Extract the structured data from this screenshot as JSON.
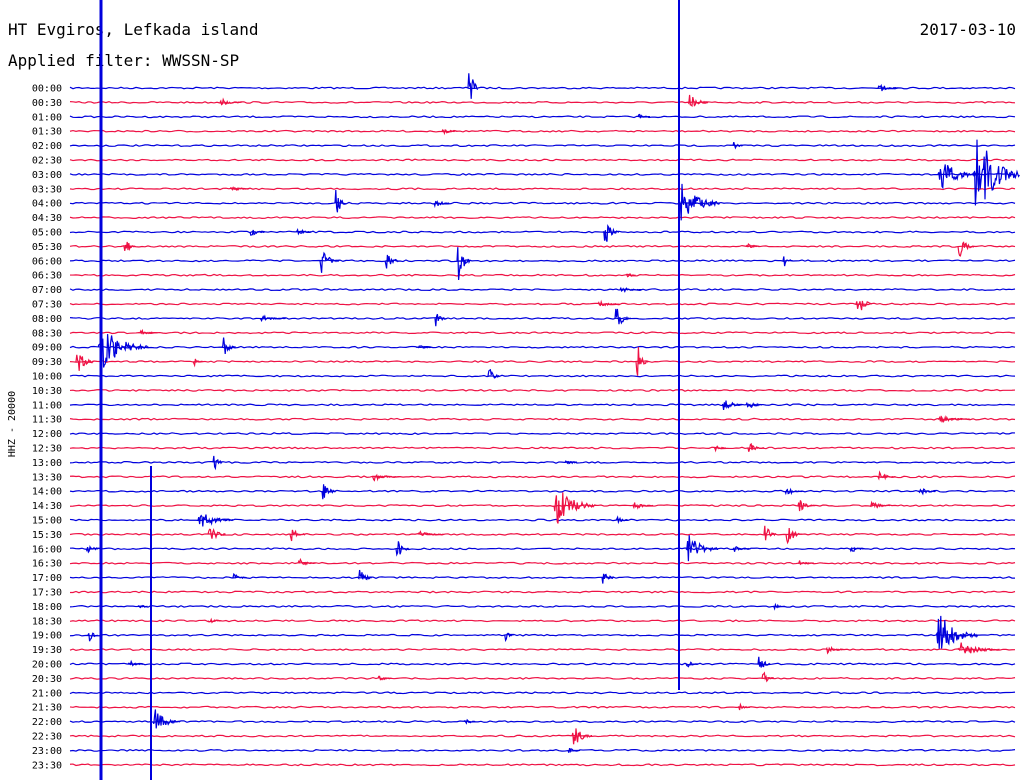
{
  "header": {
    "station": "HT Evgiros, Lefkada island",
    "filter": "Applied filter: WWSSN-SP",
    "date": "2017-03-10"
  },
  "chart_data": {
    "type": "line",
    "ylabel": "HHZ - 20000",
    "rows": [
      "00:00",
      "00:30",
      "01:00",
      "01:30",
      "02:00",
      "02:30",
      "03:00",
      "03:30",
      "04:00",
      "04:30",
      "05:00",
      "05:30",
      "06:00",
      "06:30",
      "07:00",
      "07:30",
      "08:00",
      "08:30",
      "09:00",
      "09:30",
      "10:00",
      "10:30",
      "11:00",
      "11:30",
      "12:00",
      "12:30",
      "13:00",
      "13:30",
      "14:00",
      "14:30",
      "15:00",
      "15:30",
      "16:00",
      "16:30",
      "17:00",
      "17:30",
      "18:00",
      "18:30",
      "19:00",
      "19:30",
      "20:00",
      "20:30",
      "21:00",
      "21:30",
      "22:00",
      "22:30",
      "23:00",
      "23:30"
    ],
    "colors": [
      "#0000dd",
      "#ee1144"
    ],
    "events": [
      {
        "row": 0,
        "x": 470,
        "amp": 40,
        "dur": 8
      },
      {
        "row": 0,
        "x": 880,
        "amp": 6,
        "dur": 18
      },
      {
        "row": 1,
        "x": 222,
        "amp": 5,
        "dur": 20
      },
      {
        "row": 1,
        "x": 690,
        "amp": 14,
        "dur": 18
      },
      {
        "row": 2,
        "x": 640,
        "amp": 4,
        "dur": 10
      },
      {
        "row": 3,
        "x": 444,
        "amp": 4,
        "dur": 14
      },
      {
        "row": 4,
        "x": 735,
        "amp": 6,
        "dur": 8
      },
      {
        "row": 6,
        "x": 940,
        "amp": 20,
        "dur": 40
      },
      {
        "row": 6,
        "x": 975,
        "amp": 60,
        "dur": 45
      },
      {
        "row": 7,
        "x": 232,
        "amp": 4,
        "dur": 18
      },
      {
        "row": 8,
        "x": 337,
        "amp": 20,
        "dur": 10
      },
      {
        "row": 8,
        "x": 436,
        "amp": 6,
        "dur": 14
      },
      {
        "row": 8,
        "x": 680,
        "amp": 30,
        "dur": 40
      },
      {
        "row": 10,
        "x": 252,
        "amp": 6,
        "dur": 14
      },
      {
        "row": 10,
        "x": 298,
        "amp": 5,
        "dur": 14
      },
      {
        "row": 10,
        "x": 605,
        "amp": 22,
        "dur": 14
      },
      {
        "row": 11,
        "x": 126,
        "amp": 12,
        "dur": 10
      },
      {
        "row": 11,
        "x": 748,
        "amp": 5,
        "dur": 12
      },
      {
        "row": 11,
        "x": 960,
        "amp": 18,
        "dur": 14
      },
      {
        "row": 12,
        "x": 322,
        "amp": 16,
        "dur": 18
      },
      {
        "row": 12,
        "x": 387,
        "amp": 16,
        "dur": 12
      },
      {
        "row": 12,
        "x": 459,
        "amp": 30,
        "dur": 12
      },
      {
        "row": 12,
        "x": 785,
        "amp": 10,
        "dur": 8
      },
      {
        "row": 13,
        "x": 628,
        "amp": 5,
        "dur": 8
      },
      {
        "row": 14,
        "x": 622,
        "amp": 5,
        "dur": 20
      },
      {
        "row": 15,
        "x": 858,
        "amp": 22,
        "dur": 14
      },
      {
        "row": 15,
        "x": 600,
        "amp": 4,
        "dur": 20
      },
      {
        "row": 16,
        "x": 437,
        "amp": 12,
        "dur": 10
      },
      {
        "row": 16,
        "x": 617,
        "amp": 18,
        "dur": 14
      },
      {
        "row": 16,
        "x": 262,
        "amp": 4,
        "dur": 24
      },
      {
        "row": 17,
        "x": 142,
        "amp": 4,
        "dur": 16
      },
      {
        "row": 18,
        "x": 100,
        "amp": 30,
        "dur": 50
      },
      {
        "row": 18,
        "x": 224,
        "amp": 14,
        "dur": 12
      },
      {
        "row": 18,
        "x": 418,
        "amp": 5,
        "dur": 14
      },
      {
        "row": 19,
        "x": 78,
        "amp": 18,
        "dur": 16
      },
      {
        "row": 19,
        "x": 638,
        "amp": 28,
        "dur": 10
      },
      {
        "row": 19,
        "x": 195,
        "amp": 6,
        "dur": 8
      },
      {
        "row": 20,
        "x": 490,
        "amp": 12,
        "dur": 10
      },
      {
        "row": 22,
        "x": 724,
        "amp": 10,
        "dur": 18
      },
      {
        "row": 22,
        "x": 748,
        "amp": 8,
        "dur": 14
      },
      {
        "row": 23,
        "x": 940,
        "amp": 5,
        "dur": 30
      },
      {
        "row": 25,
        "x": 750,
        "amp": 8,
        "dur": 14
      },
      {
        "row": 25,
        "x": 716,
        "amp": 5,
        "dur": 10
      },
      {
        "row": 26,
        "x": 215,
        "amp": 14,
        "dur": 8
      },
      {
        "row": 26,
        "x": 567,
        "amp": 6,
        "dur": 10
      },
      {
        "row": 27,
        "x": 374,
        "amp": 5,
        "dur": 26
      },
      {
        "row": 27,
        "x": 880,
        "amp": 6,
        "dur": 16
      },
      {
        "row": 28,
        "x": 324,
        "amp": 20,
        "dur": 12
      },
      {
        "row": 28,
        "x": 787,
        "amp": 6,
        "dur": 16
      },
      {
        "row": 28,
        "x": 920,
        "amp": 6,
        "dur": 16
      },
      {
        "row": 29,
        "x": 556,
        "amp": 26,
        "dur": 40
      },
      {
        "row": 29,
        "x": 800,
        "amp": 8,
        "dur": 16
      },
      {
        "row": 29,
        "x": 872,
        "amp": 6,
        "dur": 18
      },
      {
        "row": 29,
        "x": 635,
        "amp": 5,
        "dur": 18
      },
      {
        "row": 30,
        "x": 200,
        "amp": 12,
        "dur": 34
      },
      {
        "row": 30,
        "x": 618,
        "amp": 6,
        "dur": 10
      },
      {
        "row": 31,
        "x": 210,
        "amp": 14,
        "dur": 16
      },
      {
        "row": 31,
        "x": 292,
        "amp": 10,
        "dur": 14
      },
      {
        "row": 31,
        "x": 766,
        "amp": 18,
        "dur": 10
      },
      {
        "row": 31,
        "x": 788,
        "amp": 16,
        "dur": 14
      },
      {
        "row": 31,
        "x": 420,
        "amp": 4,
        "dur": 24
      },
      {
        "row": 32,
        "x": 88,
        "amp": 6,
        "dur": 14
      },
      {
        "row": 32,
        "x": 398,
        "amp": 14,
        "dur": 12
      },
      {
        "row": 32,
        "x": 688,
        "amp": 20,
        "dur": 30
      },
      {
        "row": 32,
        "x": 735,
        "amp": 5,
        "dur": 16
      },
      {
        "row": 32,
        "x": 852,
        "amp": 6,
        "dur": 12
      },
      {
        "row": 33,
        "x": 300,
        "amp": 6,
        "dur": 16
      },
      {
        "row": 33,
        "x": 800,
        "amp": 5,
        "dur": 14
      },
      {
        "row": 34,
        "x": 235,
        "amp": 6,
        "dur": 12
      },
      {
        "row": 34,
        "x": 360,
        "amp": 14,
        "dur": 12
      },
      {
        "row": 34,
        "x": 604,
        "amp": 12,
        "dur": 10
      },
      {
        "row": 36,
        "x": 140,
        "amp": 5,
        "dur": 8
      },
      {
        "row": 36,
        "x": 775,
        "amp": 4,
        "dur": 10
      },
      {
        "row": 37,
        "x": 210,
        "amp": 4,
        "dur": 12
      },
      {
        "row": 38,
        "x": 90,
        "amp": 10,
        "dur": 8
      },
      {
        "row": 38,
        "x": 506,
        "amp": 10,
        "dur": 8
      },
      {
        "row": 38,
        "x": 938,
        "amp": 30,
        "dur": 40
      },
      {
        "row": 39,
        "x": 828,
        "amp": 6,
        "dur": 16
      },
      {
        "row": 39,
        "x": 960,
        "amp": 10,
        "dur": 40
      },
      {
        "row": 40,
        "x": 130,
        "amp": 5,
        "dur": 14
      },
      {
        "row": 40,
        "x": 688,
        "amp": 6,
        "dur": 10
      },
      {
        "row": 40,
        "x": 760,
        "amp": 14,
        "dur": 10
      },
      {
        "row": 41,
        "x": 764,
        "amp": 12,
        "dur": 10
      },
      {
        "row": 41,
        "x": 380,
        "amp": 6,
        "dur": 12
      },
      {
        "row": 43,
        "x": 740,
        "amp": 5,
        "dur": 10
      },
      {
        "row": 44,
        "x": 155,
        "amp": 16,
        "dur": 26
      },
      {
        "row": 44,
        "x": 466,
        "amp": 6,
        "dur": 10
      },
      {
        "row": 45,
        "x": 574,
        "amp": 16,
        "dur": 18
      },
      {
        "row": 46,
        "x": 570,
        "amp": 5,
        "dur": 10
      }
    ],
    "vertical_lines": [
      {
        "x": 101,
        "y1": 0,
        "y2": 780,
        "color": "#0000dd",
        "width": 3
      },
      {
        "x": 151,
        "y1": 466,
        "y2": 780,
        "color": "#0000dd",
        "width": 2
      },
      {
        "x": 679,
        "y1": 0,
        "y2": 690,
        "color": "#0000dd",
        "width": 2
      }
    ]
  }
}
